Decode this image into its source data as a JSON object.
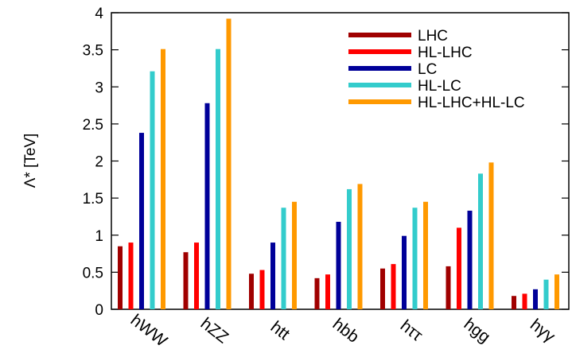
{
  "chart_data": {
    "type": "bar",
    "ylabel": "Λ* [TeV]",
    "xlabel": "",
    "title": "",
    "ylim": [
      0,
      4
    ],
    "yticks": [
      0,
      0.5,
      1,
      1.5,
      2,
      2.5,
      3,
      3.5,
      4
    ],
    "ytick_labels": [
      "0",
      "0.5",
      "1",
      "1.5",
      "2",
      "2.5",
      "3",
      "3.5",
      "4"
    ],
    "categories": [
      "hWW",
      "hZZ",
      "htt",
      "hbb",
      "hττ",
      "hgg",
      "hγγ"
    ],
    "legend_position": "top-right",
    "grid": false,
    "series": [
      {
        "name": "LHC",
        "color": "#a00000",
        "values": [
          0.85,
          0.77,
          0.48,
          0.42,
          0.55,
          0.58,
          0.18
        ]
      },
      {
        "name": "HL-LHC",
        "color": "#ff0000",
        "values": [
          0.9,
          0.9,
          0.53,
          0.47,
          0.61,
          1.1,
          0.21
        ]
      },
      {
        "name": "LC",
        "color": "#000099",
        "values": [
          2.38,
          2.78,
          0.9,
          1.18,
          0.99,
          1.33,
          0.27
        ]
      },
      {
        "name": "HL-LC",
        "color": "#33cccc",
        "values": [
          3.21,
          3.51,
          1.37,
          1.62,
          1.37,
          1.83,
          0.4
        ]
      },
      {
        "name": "HL-LHC+HL-LC",
        "color": "#ff9900",
        "values": [
          3.51,
          3.92,
          1.45,
          1.69,
          1.45,
          1.98,
          0.47
        ]
      }
    ]
  }
}
